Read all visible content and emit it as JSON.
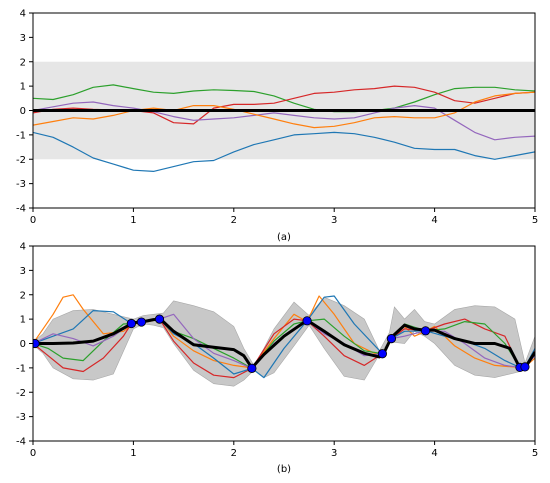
{
  "chart_data": [
    {
      "type": "line",
      "panel_label": "(a)",
      "xlim": [
        0,
        5
      ],
      "ylim": [
        -4,
        4
      ],
      "xticks": [
        "0",
        "1",
        "2",
        "3",
        "4",
        "5"
      ],
      "yticks": [
        "-4",
        "-3",
        "-2",
        "-1",
        "0",
        "1",
        "2",
        "3",
        "4"
      ],
      "band": {
        "lower": -2,
        "upper": 2,
        "color": "#e6e6e6"
      },
      "mean": {
        "x": [
          0,
          5
        ],
        "y": [
          0,
          0
        ],
        "color": "#000000"
      },
      "series": [
        {
          "color": "#2ca02c",
          "x": [
            0,
            0.2,
            0.4,
            0.6,
            0.8,
            1.0,
            1.2,
            1.4,
            1.6,
            1.8,
            2.0,
            2.2,
            2.4,
            2.6,
            2.8,
            3.0,
            3.2,
            3.4,
            3.6,
            3.8,
            4.0,
            4.2,
            4.4,
            4.6,
            4.8,
            5.0
          ],
          "y": [
            0.5,
            0.45,
            0.65,
            0.95,
            1.05,
            0.9,
            0.75,
            0.7,
            0.8,
            0.85,
            0.82,
            0.78,
            0.6,
            0.3,
            0.05,
            -0.05,
            -0.05,
            0.0,
            0.1,
            0.35,
            0.65,
            0.9,
            0.95,
            0.95,
            0.85,
            0.8
          ]
        },
        {
          "color": "#d62728",
          "x": [
            0,
            0.2,
            0.4,
            0.6,
            0.8,
            1.0,
            1.2,
            1.4,
            1.6,
            1.8,
            2.0,
            2.2,
            2.4,
            2.6,
            2.8,
            3.0,
            3.2,
            3.4,
            3.6,
            3.8,
            4.0,
            4.2,
            4.4,
            4.6,
            4.8,
            5.0
          ],
          "y": [
            -0.1,
            0.05,
            0.1,
            0.05,
            0.02,
            0.0,
            -0.1,
            -0.5,
            -0.55,
            0.1,
            0.25,
            0.25,
            0.3,
            0.5,
            0.7,
            0.75,
            0.85,
            0.9,
            1.0,
            0.95,
            0.75,
            0.4,
            0.3,
            0.5,
            0.7,
            0.75
          ]
        },
        {
          "color": "#9467bd",
          "x": [
            0,
            0.2,
            0.4,
            0.6,
            0.8,
            1.0,
            1.2,
            1.4,
            1.6,
            1.8,
            2.0,
            2.2,
            2.4,
            2.6,
            2.8,
            3.0,
            3.2,
            3.4,
            3.6,
            3.8,
            4.0,
            4.2,
            4.4,
            4.6,
            4.8,
            5.0
          ],
          "y": [
            0.0,
            0.15,
            0.3,
            0.35,
            0.2,
            0.1,
            -0.05,
            -0.25,
            -0.4,
            -0.35,
            -0.3,
            -0.2,
            -0.1,
            -0.2,
            -0.3,
            -0.35,
            -0.3,
            -0.1,
            0.1,
            0.2,
            0.1,
            -0.4,
            -0.9,
            -1.2,
            -1.1,
            -1.05
          ]
        },
        {
          "color": "#ff7f0e",
          "x": [
            0,
            0.2,
            0.4,
            0.6,
            0.8,
            1.0,
            1.2,
            1.4,
            1.6,
            1.8,
            2.0,
            2.2,
            2.4,
            2.6,
            2.8,
            3.0,
            3.2,
            3.4,
            3.6,
            3.8,
            4.0,
            4.2,
            4.4,
            4.6,
            4.8,
            5.0
          ],
          "y": [
            -0.6,
            -0.45,
            -0.3,
            -0.35,
            -0.2,
            0.0,
            0.1,
            0.0,
            0.2,
            0.2,
            0.05,
            -0.15,
            -0.35,
            -0.55,
            -0.7,
            -0.65,
            -0.5,
            -0.3,
            -0.25,
            -0.3,
            -0.3,
            -0.1,
            0.35,
            0.6,
            0.7,
            0.75
          ]
        },
        {
          "color": "#1f77b4",
          "x": [
            0,
            0.2,
            0.4,
            0.6,
            0.8,
            1.0,
            1.2,
            1.4,
            1.6,
            1.8,
            2.0,
            2.2,
            2.4,
            2.6,
            2.8,
            3.0,
            3.2,
            3.4,
            3.6,
            3.8,
            4.0,
            4.2,
            4.4,
            4.6,
            4.8,
            5.0
          ],
          "y": [
            -0.9,
            -1.1,
            -1.5,
            -1.95,
            -2.2,
            -2.45,
            -2.5,
            -2.3,
            -2.1,
            -2.05,
            -1.7,
            -1.4,
            -1.2,
            -1.0,
            -0.95,
            -0.9,
            -0.95,
            -1.1,
            -1.3,
            -1.55,
            -1.6,
            -1.6,
            -1.85,
            -2.0,
            -1.85,
            -1.7
          ]
        }
      ]
    },
    {
      "type": "line",
      "panel_label": "(b)",
      "xlim": [
        0,
        5
      ],
      "ylim": [
        -4,
        4
      ],
      "xticks": [
        "0",
        "1",
        "2",
        "3",
        "4",
        "5"
      ],
      "yticks": [
        "-4",
        "-3",
        "-2",
        "-1",
        "0",
        "1",
        "2",
        "3",
        "4"
      ],
      "band": {
        "color": "#c8c8c8",
        "x": [
          0,
          0.1,
          0.2,
          0.4,
          0.6,
          0.8,
          1.0,
          1.1,
          1.2,
          1.3,
          1.4,
          1.6,
          1.8,
          2.0,
          2.1,
          2.2,
          2.3,
          2.4,
          2.6,
          2.75,
          2.9,
          3.1,
          3.3,
          3.45,
          3.55,
          3.6,
          3.7,
          3.8,
          3.9,
          4.0,
          4.2,
          4.4,
          4.6,
          4.8,
          4.9,
          5.0
        ],
        "lower": [
          -0.05,
          -0.4,
          -1.0,
          -1.45,
          -1.5,
          -1.25,
          0.6,
          0.8,
          0.75,
          0.65,
          0.0,
          -1.1,
          -1.65,
          -1.75,
          -1.5,
          -1.1,
          -1.4,
          -1.2,
          -0.1,
          0.75,
          -0.2,
          -1.35,
          -1.5,
          -0.45,
          0.1,
          0.05,
          0.0,
          0.5,
          0.3,
          0.0,
          -0.9,
          -1.3,
          -1.4,
          -1.2,
          -1.1,
          -0.2
        ],
        "upper": [
          0.05,
          0.4,
          1.0,
          1.35,
          1.4,
          1.2,
          1.0,
          1.15,
          1.2,
          1.25,
          1.75,
          1.55,
          1.3,
          0.7,
          -0.2,
          -0.9,
          -0.2,
          0.6,
          1.7,
          1.15,
          1.9,
          1.55,
          1.0,
          -0.3,
          0.45,
          1.5,
          1.0,
          1.4,
          0.9,
          0.8,
          1.4,
          1.55,
          1.5,
          1.0,
          -0.8,
          0.3
        ]
      },
      "mean": {
        "color": "#000000",
        "x": [
          0,
          0.2,
          0.4,
          0.6,
          0.8,
          1.0,
          1.1,
          1.2,
          1.27,
          1.4,
          1.6,
          1.8,
          2.0,
          2.1,
          2.18,
          2.3,
          2.5,
          2.73,
          2.9,
          3.1,
          3.3,
          3.45,
          3.5,
          3.57,
          3.7,
          3.8,
          3.9,
          4.0,
          4.2,
          4.4,
          4.6,
          4.75,
          4.85,
          4.9,
          5.0
        ],
        "y": [
          0.0,
          0.0,
          0.02,
          0.1,
          0.4,
          0.85,
          0.9,
          0.98,
          1.0,
          0.5,
          -0.05,
          -0.15,
          -0.25,
          -0.5,
          -1.0,
          -0.45,
          0.3,
          0.95,
          0.5,
          -0.05,
          -0.4,
          -0.55,
          -0.35,
          0.25,
          0.75,
          0.6,
          0.55,
          0.55,
          0.2,
          0.0,
          0.0,
          -0.2,
          -1.0,
          -1.0,
          -0.35
        ]
      },
      "observations": {
        "color": "#0000ff",
        "x": [
          0.02,
          0.98,
          1.08,
          1.26,
          2.18,
          2.73,
          3.48,
          3.57,
          3.91,
          4.85,
          4.9
        ],
        "y": [
          0.0,
          0.82,
          0.88,
          1.0,
          -1.02,
          0.93,
          -0.42,
          0.2,
          0.52,
          -0.98,
          -0.96
        ]
      },
      "series": [
        {
          "color": "#ff7f0e",
          "x": [
            0,
            0.2,
            0.3,
            0.4,
            0.5,
            0.7,
            0.9,
            1.0,
            1.15,
            1.27,
            1.4,
            1.6,
            1.8,
            2.0,
            2.18,
            2.4,
            2.6,
            2.73,
            2.85,
            3.0,
            3.2,
            3.4,
            3.48,
            3.57,
            3.7,
            3.8,
            3.91,
            4.0,
            4.2,
            4.4,
            4.6,
            4.75,
            4.85,
            4.9,
            5.0
          ],
          "y": [
            0.0,
            1.2,
            1.9,
            2.0,
            1.4,
            0.4,
            0.5,
            0.8,
            0.9,
            1.0,
            0.3,
            -0.3,
            -0.7,
            -0.9,
            -1.0,
            0.2,
            1.2,
            0.9,
            1.95,
            1.2,
            0.0,
            -0.4,
            -0.42,
            0.2,
            0.7,
            0.3,
            0.5,
            0.7,
            -0.1,
            -0.6,
            -0.9,
            -0.95,
            -0.98,
            -0.96,
            -0.6
          ]
        },
        {
          "color": "#d62728",
          "x": [
            0,
            0.15,
            0.3,
            0.5,
            0.7,
            0.9,
            0.98,
            1.08,
            1.26,
            1.4,
            1.6,
            1.8,
            2.0,
            2.18,
            2.4,
            2.6,
            2.73,
            2.9,
            3.1,
            3.3,
            3.48,
            3.57,
            3.7,
            3.91,
            4.1,
            4.3,
            4.5,
            4.7,
            4.85,
            4.9,
            5.0
          ],
          "y": [
            0.0,
            -0.5,
            -1.0,
            -1.15,
            -0.6,
            0.3,
            0.82,
            0.88,
            1.0,
            0.1,
            -0.8,
            -1.3,
            -1.4,
            -1.02,
            0.4,
            1.0,
            0.93,
            0.3,
            -0.5,
            -0.9,
            -0.42,
            0.2,
            0.6,
            0.52,
            0.8,
            1.0,
            0.6,
            0.3,
            -0.98,
            -0.96,
            -0.3
          ]
        },
        {
          "color": "#1f77b4",
          "x": [
            0,
            0.2,
            0.4,
            0.6,
            0.8,
            0.98,
            1.08,
            1.26,
            1.4,
            1.6,
            1.8,
            2.0,
            2.18,
            2.3,
            2.5,
            2.73,
            2.9,
            3.0,
            3.2,
            3.48,
            3.57,
            3.7,
            3.91,
            4.1,
            4.3,
            4.5,
            4.7,
            4.85,
            4.9,
            5.0
          ],
          "y": [
            0.0,
            0.3,
            0.6,
            1.35,
            1.3,
            0.82,
            0.88,
            1.0,
            0.4,
            0.0,
            -0.6,
            -1.25,
            -1.02,
            -1.4,
            -0.2,
            0.93,
            1.9,
            1.95,
            0.8,
            -0.42,
            0.2,
            0.5,
            0.52,
            0.3,
            0.1,
            -0.2,
            -0.7,
            -0.98,
            -0.96,
            -0.2
          ]
        },
        {
          "color": "#2ca02c",
          "x": [
            0,
            0.15,
            0.3,
            0.5,
            0.7,
            0.9,
            0.98,
            1.08,
            1.26,
            1.4,
            1.6,
            1.8,
            2.0,
            2.18,
            2.4,
            2.6,
            2.73,
            2.9,
            3.1,
            3.3,
            3.48,
            3.57,
            3.7,
            3.91,
            4.1,
            4.3,
            4.5,
            4.7,
            4.85,
            4.9,
            5.0
          ],
          "y": [
            0.0,
            -0.2,
            -0.6,
            -0.7,
            0.1,
            0.8,
            0.82,
            0.88,
            1.0,
            0.5,
            0.2,
            -0.2,
            -0.6,
            -1.02,
            0.1,
            0.8,
            0.93,
            1.0,
            0.3,
            -0.3,
            -0.42,
            0.2,
            0.8,
            0.52,
            0.6,
            0.9,
            0.8,
            0.0,
            -0.98,
            -0.96,
            -0.4
          ]
        },
        {
          "color": "#9467bd",
          "x": [
            0,
            0.2,
            0.4,
            0.6,
            0.8,
            0.98,
            1.08,
            1.26,
            1.4,
            1.6,
            1.8,
            2.0,
            2.18,
            2.4,
            2.6,
            2.73,
            2.9,
            3.1,
            3.3,
            3.48,
            3.57,
            3.7,
            3.91,
            4.1,
            4.3,
            4.5,
            4.7,
            4.85,
            4.9,
            5.0
          ],
          "y": [
            0.0,
            0.4,
            0.2,
            -0.1,
            0.3,
            0.82,
            0.88,
            1.0,
            1.2,
            0.2,
            -0.4,
            -0.7,
            -1.02,
            0.0,
            0.6,
            0.93,
            0.4,
            0.0,
            -0.5,
            -0.42,
            0.2,
            0.3,
            0.52,
            0.5,
            0.0,
            -0.6,
            -0.9,
            -0.98,
            -0.96,
            -0.5
          ]
        }
      ]
    }
  ]
}
